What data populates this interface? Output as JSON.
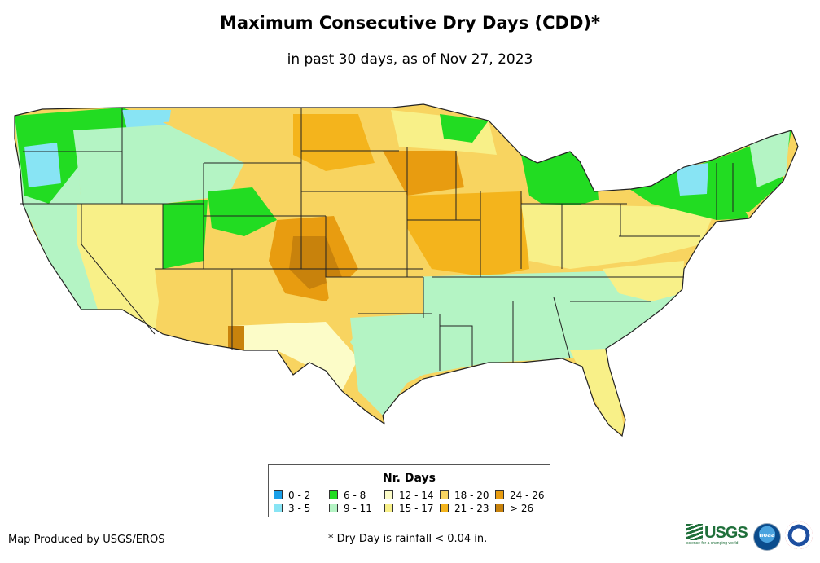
{
  "title": "Maximum Consecutive Dry Days (CDD)*",
  "subtitle": "in past 30 days, as of Nov 27, 2023",
  "legend": {
    "title": "Nr. Days",
    "items": [
      {
        "label": "0 - 2",
        "color": "#1a9fe8"
      },
      {
        "label": "3 - 5",
        "color": "#88e4f4"
      },
      {
        "label": "6 - 8",
        "color": "#22dc22"
      },
      {
        "label": "9 - 11",
        "color": "#b4f4c4"
      },
      {
        "label": "12 - 14",
        "color": "#fcfcc8"
      },
      {
        "label": "15 - 17",
        "color": "#f8f088"
      },
      {
        "label": "18 - 20",
        "color": "#f8d460"
      },
      {
        "label": "21 - 23",
        "color": "#f4b41c"
      },
      {
        "label": "24 - 26",
        "color": "#e89c10"
      },
      {
        "label": "> 26",
        "color": "#c8820c"
      }
    ]
  },
  "credit": "Map Produced by USGS/EROS",
  "footnote": "* Dry Day is rainfall < 0.04 in.",
  "logos": {
    "usgs": "USGS",
    "usgs_tagline": "science for a changing world",
    "noaa": "noaa"
  }
}
